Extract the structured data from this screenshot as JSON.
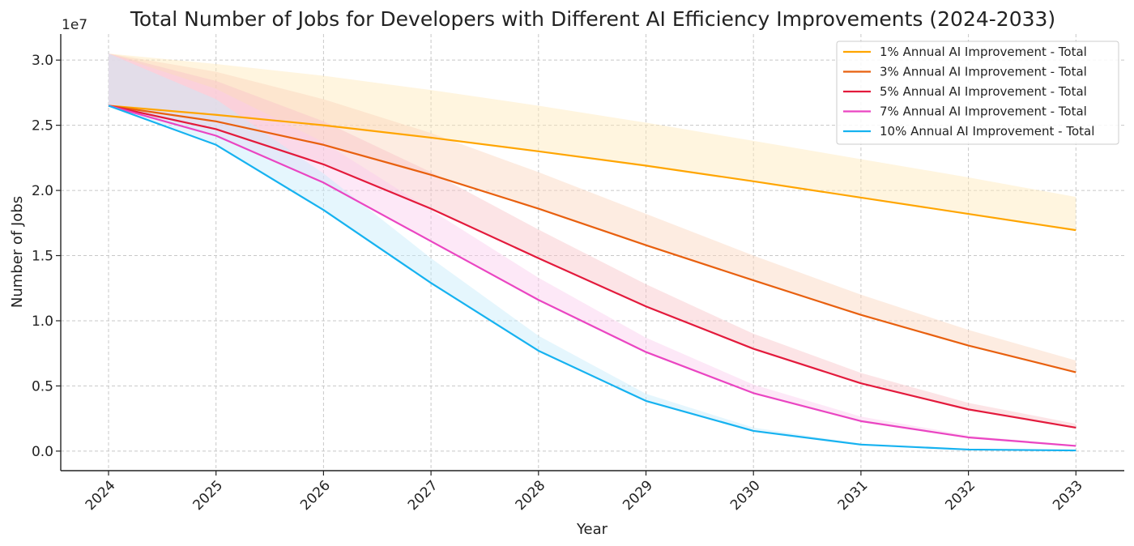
{
  "chart_data": {
    "type": "line",
    "title": "Total Number of Jobs for Developers with Different AI Efficiency Improvements (2024-2033)",
    "xlabel": "Year",
    "ylabel": "Number of Jobs",
    "y_offset_label": "1e7",
    "categories": [
      "2024",
      "2025",
      "2026",
      "2027",
      "2028",
      "2029",
      "2030",
      "2031",
      "2032",
      "2033"
    ],
    "y_ticks": [
      0,
      5000000,
      10000000,
      15000000,
      20000000,
      25000000,
      30000000
    ],
    "y_tick_labels": [
      "0.0",
      "0.5",
      "1.0",
      "1.5",
      "2.0",
      "2.5",
      "3.0"
    ],
    "ylim": [
      -1500000,
      32000000
    ],
    "grid": true,
    "legend_position": "top-right",
    "series": [
      {
        "name": "1% Annual AI Improvement - Total",
        "color": "#ffa500",
        "band_color": "#ffe8b8",
        "values": [
          26500000,
          25800000,
          25000000,
          24050000,
          23000000,
          21900000,
          20700000,
          19450000,
          18200000,
          16950000
        ],
        "upper": [
          30500000,
          29700000,
          28800000,
          27700000,
          26500000,
          25200000,
          23800000,
          22400000,
          21000000,
          19500000
        ]
      },
      {
        "name": "3% Annual AI Improvement - Total",
        "color": "#e8600f",
        "band_color": "#fbd5bd",
        "values": [
          26500000,
          25300000,
          23500000,
          21200000,
          18600000,
          15800000,
          13100000,
          10450000,
          8100000,
          6050000
        ],
        "upper": [
          30500000,
          29100000,
          27000000,
          24400000,
          21400000,
          18200000,
          15000000,
          12000000,
          9300000,
          6950000
        ]
      },
      {
        "name": "5% Annual AI Improvement - Total",
        "color": "#e31a3c",
        "band_color": "#f8c4c8",
        "values": [
          26500000,
          24700000,
          22000000,
          18600000,
          14800000,
          11100000,
          7850000,
          5200000,
          3200000,
          1800000
        ],
        "upper": [
          30500000,
          28400000,
          25300000,
          21400000,
          17000000,
          12800000,
          9000000,
          6000000,
          3700000,
          2100000
        ]
      },
      {
        "name": "7% Annual AI Improvement - Total",
        "color": "#ea45c2",
        "band_color": "#fbcdee",
        "values": [
          26500000,
          24200000,
          20600000,
          16100000,
          11600000,
          7600000,
          4450000,
          2300000,
          1050000,
          400000
        ],
        "upper": [
          30500000,
          27800000,
          23700000,
          18500000,
          13300000,
          8700000,
          5100000,
          2650000,
          1200000,
          460000
        ]
      },
      {
        "name": "10% Annual AI Improvement - Total",
        "color": "#16b2f0",
        "band_color": "#c6ebfb",
        "values": [
          26500000,
          23500000,
          18500000,
          12900000,
          7700000,
          3850000,
          1550000,
          500000,
          120000,
          50000
        ],
        "upper": [
          30500000,
          27000000,
          21300000,
          14800000,
          8850000,
          4400000,
          1800000,
          580000,
          140000,
          60000
        ]
      }
    ]
  }
}
